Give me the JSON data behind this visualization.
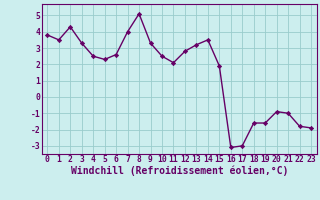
{
  "x": [
    0,
    1,
    2,
    3,
    4,
    5,
    6,
    7,
    8,
    9,
    10,
    11,
    12,
    13,
    14,
    15,
    16,
    17,
    18,
    19,
    20,
    21,
    22,
    23
  ],
  "y": [
    3.8,
    3.5,
    4.3,
    3.3,
    2.5,
    2.3,
    2.6,
    4.0,
    5.1,
    3.3,
    2.5,
    2.1,
    2.8,
    3.2,
    3.5,
    1.9,
    -3.1,
    -3.0,
    -1.6,
    -1.6,
    -0.9,
    -1.0,
    -1.8,
    -1.9
  ],
  "line_color": "#660066",
  "marker": "D",
  "marker_size": 2.2,
  "line_width": 1.0,
  "bg_color": "#cceeee",
  "grid_color": "#99cccc",
  "xlabel": "Windchill (Refroidissement éolien,°C)",
  "ylabel": "",
  "ylim": [
    -3.5,
    5.7
  ],
  "xlim": [
    -0.5,
    23.5
  ],
  "yticks": [
    -3,
    -2,
    -1,
    0,
    1,
    2,
    3,
    4,
    5
  ],
  "xticks": [
    0,
    1,
    2,
    3,
    4,
    5,
    6,
    7,
    8,
    9,
    10,
    11,
    12,
    13,
    14,
    15,
    16,
    17,
    18,
    19,
    20,
    21,
    22,
    23
  ],
  "tick_color": "#660066",
  "tick_fontsize": 5.8,
  "xlabel_fontsize": 7.0,
  "xlabel_fontweight": "bold",
  "spine_color": "#660066"
}
